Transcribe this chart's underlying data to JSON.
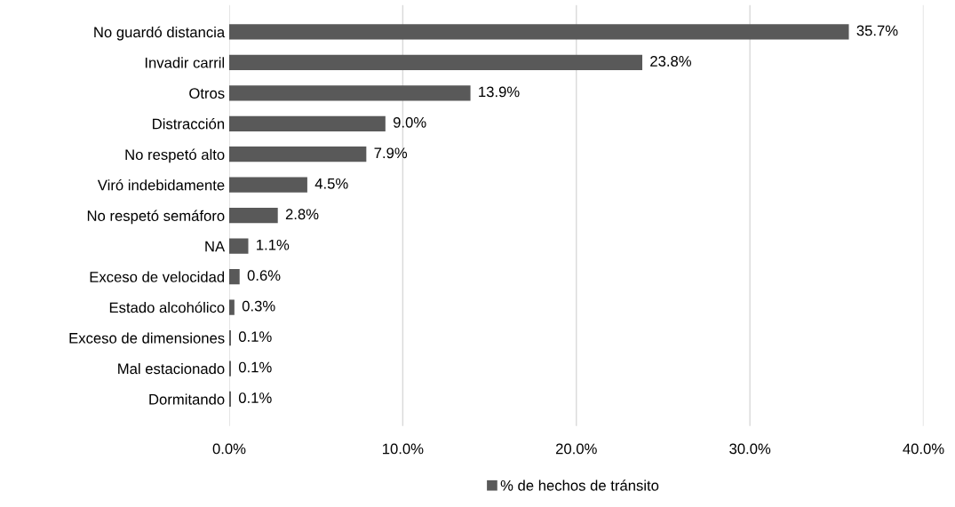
{
  "chart_data": {
    "type": "bar",
    "orientation": "horizontal",
    "categories": [
      "No guardó distancia",
      "Invadir carril",
      "Otros",
      "Distracción",
      "No respetó alto",
      "Viró indebidamente",
      "No respetó semáforo",
      "NA",
      "Exceso de velocidad",
      "Estado alcohólico",
      "Exceso de dimensiones",
      "Mal estacionado",
      "Dormitando"
    ],
    "series": [
      {
        "name": "% de hechos de tránsito",
        "color": "#595959",
        "values": [
          35.7,
          23.8,
          13.9,
          9.0,
          7.9,
          4.5,
          2.8,
          1.1,
          0.6,
          0.3,
          0.1,
          0.1,
          0.1
        ],
        "value_labels": [
          "35.7%",
          "23.8%",
          "13.9%",
          "9.0%",
          "7.9%",
          "4.5%",
          "2.8%",
          "1.1%",
          "0.6%",
          "0.3%",
          "0.1%",
          "0.1%",
          "0.1%"
        ]
      }
    ],
    "xlim": [
      0,
      40
    ],
    "xticks": [
      {
        "value": 0,
        "label": "0.0%"
      },
      {
        "value": 10,
        "label": "10.0%"
      },
      {
        "value": 20,
        "label": "20.0%"
      },
      {
        "value": 30,
        "label": "30.0%"
      },
      {
        "value": 40,
        "label": "40.0%"
      }
    ],
    "grid": "x",
    "legend": "bottom"
  }
}
